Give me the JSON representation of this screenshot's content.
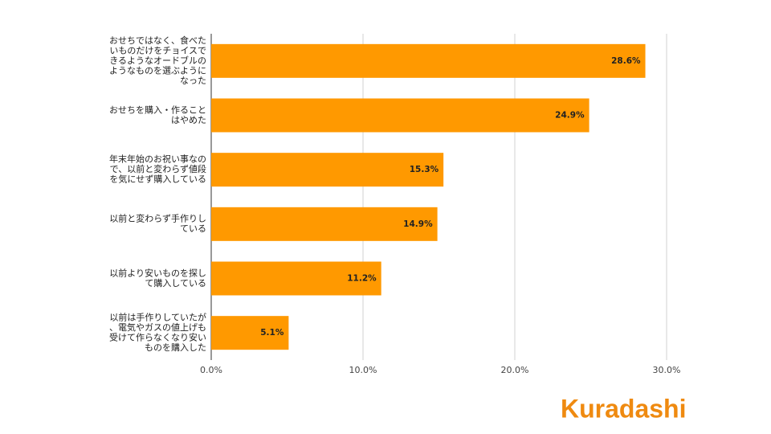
{
  "chart_data": {
    "type": "bar",
    "orientation": "horizontal",
    "categories": [
      "おせちではなく、食べたいものだけをチョイスできるようなオードブルのようなものを選ぶようになった",
      "おせちを購入・作ることはやめた",
      "年末年始のお祝い事なので、以前と変わらず値段を気にせず購入している",
      "以前と変わらず手作りしている",
      "以前より安いものを探して購入している",
      "以前は手作りしていたが、電気やガスの値上げも受けて作らなくなり安いものを購入した"
    ],
    "values": [
      28.6,
      24.9,
      15.3,
      14.9,
      11.2,
      5.1
    ],
    "value_labels": [
      "28.6%",
      "24.9%",
      "15.3%",
      "14.9%",
      "11.2%",
      "5.1%"
    ],
    "color": "#ff9900",
    "xlim": [
      0,
      30
    ],
    "xticks": [
      {
        "value": 0,
        "label": "0.0%"
      },
      {
        "value": 10,
        "label": "10.0%"
      },
      {
        "value": 20,
        "label": "20.0%"
      },
      {
        "value": 30,
        "label": "30.0%"
      }
    ],
    "grid": true
  },
  "brand": "Kuradashi"
}
